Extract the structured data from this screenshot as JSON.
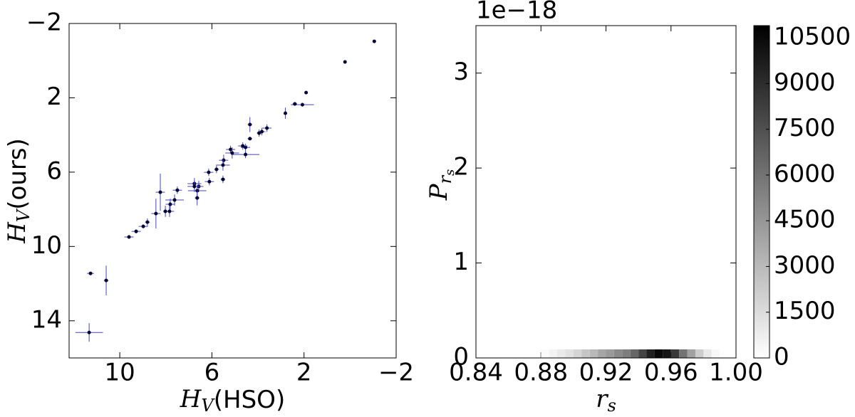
{
  "chart_data": [
    {
      "type": "scatter",
      "xlabel_symbol": "H",
      "xlabel_sub": "V",
      "xlabel_text": "(HSO)",
      "ylabel_symbol": "H",
      "ylabel_sub": "V",
      "ylabel_text": "(ours)",
      "xlim": [
        12.2,
        -2
      ],
      "ylim": [
        16,
        -2
      ],
      "xticks": [
        10,
        6,
        2,
        {
          "value": -2,
          "label": "−2"
        }
      ],
      "yticks": [
        {
          "value": -2,
          "label": "−2"
        },
        2,
        6,
        10,
        14
      ],
      "color": "#000033",
      "err_color": "#4444bb",
      "x": [
        -1.05,
        0.22,
        1.91,
        2.07,
        2.4,
        2.81,
        3.61,
        3.83,
        3.95,
        4.35,
        4.35,
        4.54,
        4.54,
        4.66,
        5.19,
        5.12,
        5.49,
        5.52,
        5.52,
        5.8,
        6.14,
        6.11,
        6.57,
        6.64,
        6.76,
        6.76,
        6.64,
        7.5,
        7.62,
        7.81,
        7.84,
        8.02,
        8.24,
        8.43,
        8.8,
        8.98,
        9.29,
        9.6,
        10.59,
        11.27,
        11.33
      ],
      "y": [
        -1.04,
        0.07,
        1.72,
        2.37,
        2.33,
        2.83,
        3.63,
        3.82,
        3.9,
        3.44,
        4.2,
        4.67,
        5.05,
        4.59,
        4.78,
        4.97,
        5.36,
        5.62,
        6.39,
        5.85,
        6.01,
        6.51,
        6.77,
        7.0,
        6.62,
        6.77,
        7.39,
        6.97,
        7.5,
        7.73,
        8.11,
        8.11,
        7.08,
        8.23,
        8.69,
        8.92,
        9.19,
        9.49,
        11.83,
        11.45,
        14.63
      ],
      "xerr": [
        0.05,
        0.05,
        0.05,
        0.5,
        0.1,
        0.05,
        0.2,
        0.15,
        0.1,
        0.1,
        0.1,
        0.2,
        0.6,
        0.2,
        0.2,
        0.3,
        0.2,
        0.3,
        0.1,
        0.1,
        0.2,
        0.2,
        0.2,
        0.4,
        0.3,
        0.3,
        0.1,
        0.2,
        0.4,
        0.2,
        0.2,
        0.1,
        0.2,
        0.2,
        0.1,
        0.2,
        0.2,
        0.2,
        0.1,
        0.15,
        0.6
      ],
      "yerr": [
        0.05,
        0.05,
        0.05,
        0.1,
        0.1,
        0.3,
        0.2,
        0.2,
        0.2,
        0.4,
        0.1,
        0.2,
        0.2,
        0.2,
        0.2,
        0.3,
        0.3,
        0.3,
        0.2,
        0.2,
        0.2,
        0.2,
        0.3,
        0.3,
        0.3,
        0.3,
        0.4,
        0.2,
        0.3,
        0.3,
        0.3,
        0.3,
        1.0,
        0.8,
        0.2,
        0.1,
        0.1,
        0.1,
        0.8,
        0.05,
        0.5
      ]
    },
    {
      "type": "hist2d",
      "xlabel_symbol": "r",
      "xlabel_sub": "s",
      "ylabel_symbol": "P",
      "ylabel_sub": "r",
      "ylabel_subsub": "s",
      "offset_text": "1e−18",
      "xlim": [
        0.84,
        1.0
      ],
      "ylim": [
        0,
        3.5
      ],
      "xticks": [
        0.84,
        0.88,
        0.92,
        0.96,
        {
          "value": 1.0,
          "label": "1.00"
        }
      ],
      "yticks": [
        0,
        1,
        2,
        3
      ],
      "bin_edges": [
        0.88,
        0.885,
        0.89,
        0.895,
        0.9,
        0.905,
        0.91,
        0.915,
        0.92,
        0.925,
        0.93,
        0.935,
        0.94,
        0.945,
        0.95,
        0.955,
        0.96,
        0.965,
        0.97,
        0.975,
        0.98,
        0.985,
        0.99
      ],
      "row_edges": [
        0,
        0.09
      ],
      "counts": [
        200,
        500,
        900,
        1300,
        1800,
        2500,
        3000,
        3800,
        4300,
        5000,
        5500,
        6500,
        8000,
        9500,
        10500,
        10000,
        8500,
        6000,
        4000,
        2200,
        1000,
        300
      ],
      "colormap": "gray_r",
      "clim": [
        0,
        10900
      ],
      "cticks": [
        0,
        1500,
        3000,
        4500,
        6000,
        7500,
        9000,
        10500
      ]
    }
  ]
}
